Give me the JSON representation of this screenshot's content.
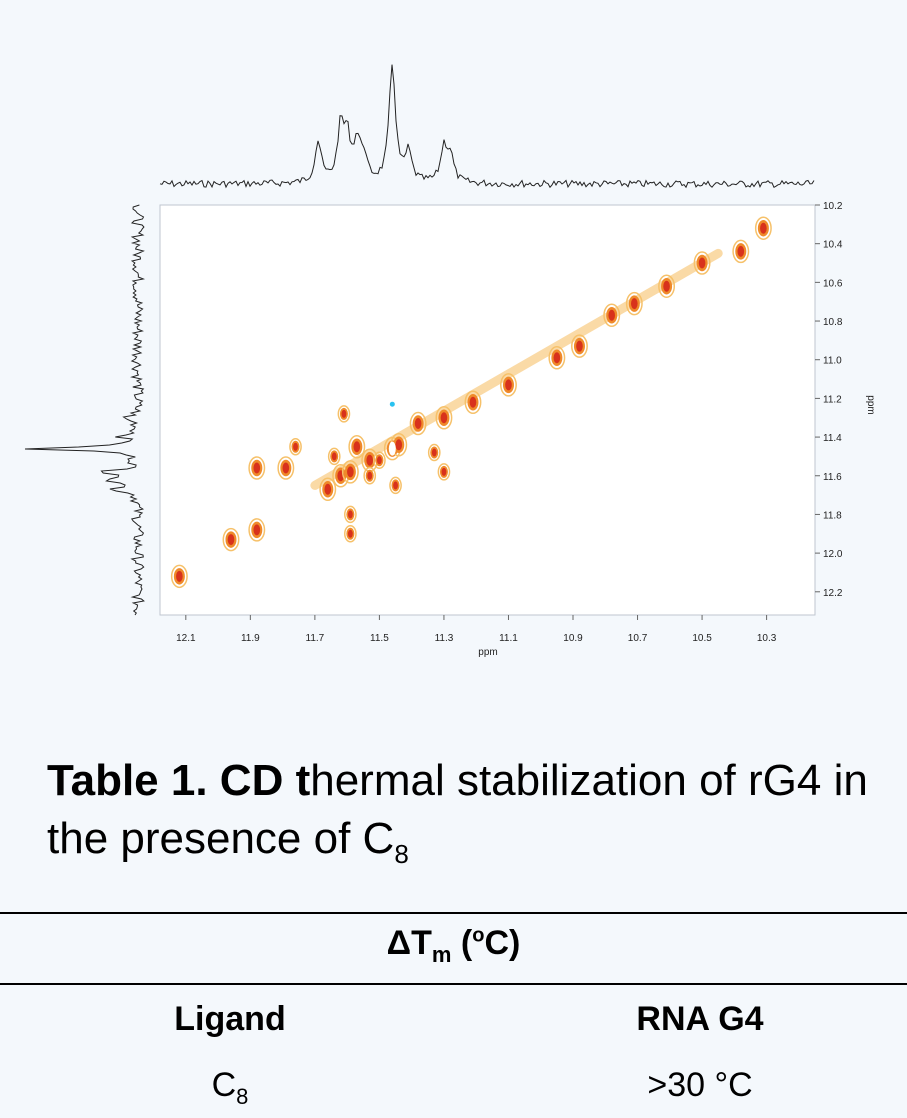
{
  "figure": {
    "chart_data": {
      "type": "contour",
      "xlabel": "ppm",
      "ylabel": "ppm",
      "x_ticks": [
        "12.1",
        "11.9",
        "11.7",
        "11.5",
        "11.3",
        "11.1",
        "10.9",
        "10.7",
        "10.5",
        "10.3"
      ],
      "y_ticks": [
        "10.2",
        "10.4",
        "10.6",
        "10.8",
        "11.0",
        "11.2",
        "11.4",
        "11.6",
        "11.8",
        "12.0",
        "12.2"
      ],
      "x_range": [
        12.18,
        10.15
      ],
      "y_range": [
        10.2,
        12.32
      ],
      "diagonal_peaks": [
        {
          "x": 12.12,
          "y": 12.12
        },
        {
          "x": 11.96,
          "y": 11.93
        },
        {
          "x": 11.88,
          "y": 11.88
        },
        {
          "x": 11.88,
          "y": 11.56
        },
        {
          "x": 11.79,
          "y": 11.56
        },
        {
          "x": 11.66,
          "y": 11.67
        },
        {
          "x": 11.62,
          "y": 11.6
        },
        {
          "x": 11.59,
          "y": 11.58
        },
        {
          "x": 11.57,
          "y": 11.45
        },
        {
          "x": 11.53,
          "y": 11.52
        },
        {
          "x": 11.46,
          "y": 11.46
        },
        {
          "x": 11.44,
          "y": 11.44
        },
        {
          "x": 11.38,
          "y": 11.33
        },
        {
          "x": 11.3,
          "y": 11.3
        },
        {
          "x": 11.21,
          "y": 11.22
        },
        {
          "x": 11.1,
          "y": 11.13
        },
        {
          "x": 10.95,
          "y": 10.99
        },
        {
          "x": 10.88,
          "y": 10.93
        },
        {
          "x": 10.78,
          "y": 10.77
        },
        {
          "x": 10.71,
          "y": 10.71
        },
        {
          "x": 10.61,
          "y": 10.62
        },
        {
          "x": 10.5,
          "y": 10.5
        },
        {
          "x": 10.38,
          "y": 10.44
        },
        {
          "x": 10.31,
          "y": 10.32
        }
      ],
      "cross_peaks": [
        {
          "x": 11.59,
          "y": 11.8
        },
        {
          "x": 11.59,
          "y": 11.9
        },
        {
          "x": 11.64,
          "y": 11.5
        },
        {
          "x": 11.53,
          "y": 11.6
        },
        {
          "x": 11.45,
          "y": 11.65
        },
        {
          "x": 11.33,
          "y": 11.48
        },
        {
          "x": 11.3,
          "y": 11.58
        },
        {
          "x": 11.76,
          "y": 11.45
        },
        {
          "x": 11.61,
          "y": 11.28
        },
        {
          "x": 11.5,
          "y": 11.52
        }
      ],
      "colors": {
        "outer": "#f6c16a",
        "mid": "#ef8a2a",
        "inner": "#d8321c",
        "core": "#ffffff",
        "trace": "#222222",
        "ref_dot": "#29c2f0"
      }
    }
  },
  "caption": {
    "label_bold": "Table 1. CD t",
    "text": "hermal stabilization of rG4 in the presence of C",
    "subscript": "8"
  },
  "table": {
    "group_header_main": "ΔT",
    "group_header_sub": "m",
    "group_header_unit": " (",
    "group_header_deg": "o",
    "group_header_tail": "C)",
    "col_ligand": "Ligand",
    "col_rna": "RNA G4",
    "row1_ligand": "C",
    "row1_ligand_sub": "8",
    "row1_value": ">30 °C"
  }
}
